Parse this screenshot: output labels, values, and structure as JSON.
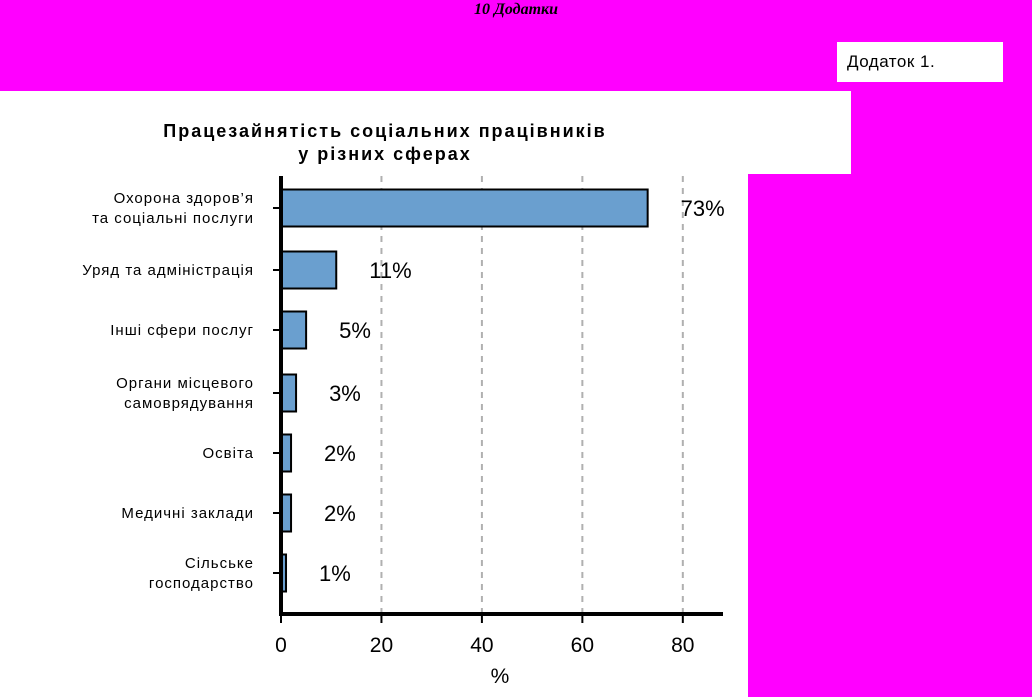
{
  "page_header": "10 Додатки",
  "appendix_label": "Додаток 1.",
  "colors": {
    "background": "#ff00ff",
    "bar_fill": "#6a9fcf",
    "bar_stroke": "#000000",
    "grid": "#b0b0b0"
  },
  "chart_data": {
    "type": "bar",
    "orientation": "horizontal",
    "title_lines": [
      "Працезайнятість соціальних працівників",
      "у різних сферах"
    ],
    "categories": [
      [
        "Охорона здоров’я",
        "та соціальні послуги"
      ],
      [
        "Уряд та адміністрація"
      ],
      [
        "Інші сфери послуг"
      ],
      [
        "Органи місцевого",
        "самоврядування"
      ],
      [
        "Освіта"
      ],
      [
        "Медичні заклади"
      ],
      [
        "Сільське",
        "господарство"
      ]
    ],
    "values": [
      73,
      11,
      5,
      3,
      2,
      2,
      1
    ],
    "value_labels": [
      "73%",
      "11%",
      "5%",
      "3%",
      "2%",
      "2%",
      "1%"
    ],
    "x_ticks": [
      0,
      20,
      40,
      60,
      80
    ],
    "xlim": [
      0,
      88
    ],
    "xlabel": "%",
    "grid": "vertical dashed"
  }
}
